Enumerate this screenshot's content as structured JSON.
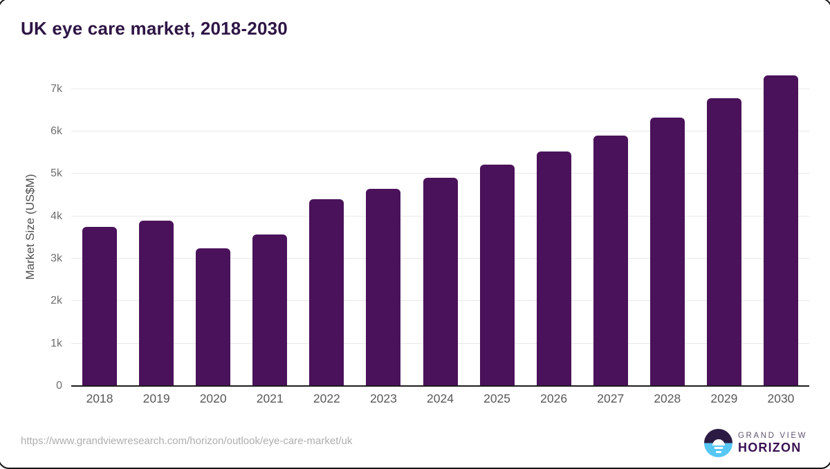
{
  "chart_data": {
    "type": "bar",
    "title": "UK eye care market, 2018-2030",
    "categories": [
      "2018",
      "2019",
      "2020",
      "2021",
      "2022",
      "2023",
      "2024",
      "2025",
      "2026",
      "2027",
      "2028",
      "2029",
      "2030"
    ],
    "values": [
      3750,
      3890,
      3240,
      3570,
      4400,
      4650,
      4900,
      5210,
      5530,
      5910,
      6320,
      6790,
      7320
    ],
    "xlabel": "",
    "ylabel": "Market Size (US$M)",
    "ylim": [
      0,
      7500
    ],
    "yticks": [
      {
        "value": 0,
        "label": "0"
      },
      {
        "value": 1000,
        "label": "1k"
      },
      {
        "value": 2000,
        "label": "2k"
      },
      {
        "value": 3000,
        "label": "3k"
      },
      {
        "value": 4000,
        "label": "4k"
      },
      {
        "value": 5000,
        "label": "5k"
      },
      {
        "value": 6000,
        "label": "6k"
      },
      {
        "value": 7000,
        "label": "7k"
      }
    ],
    "grid": true,
    "legend": "none",
    "bar_color": "#4a125a"
  },
  "footer": {
    "url": "https://www.grandviewresearch.com/horizon/outlook/eye-care-market/uk",
    "logo_line1": "GRAND VIEW",
    "logo_line2": "HORIZON"
  },
  "colors": {
    "title": "#2e1545",
    "bar": "#4a125a",
    "axis_line": "#1c1c1c",
    "gridline": "#e8e8e8",
    "tick_text": "#6e6e6e",
    "logo_dark": "#2b1b43",
    "logo_blue": "#57c7f4"
  }
}
